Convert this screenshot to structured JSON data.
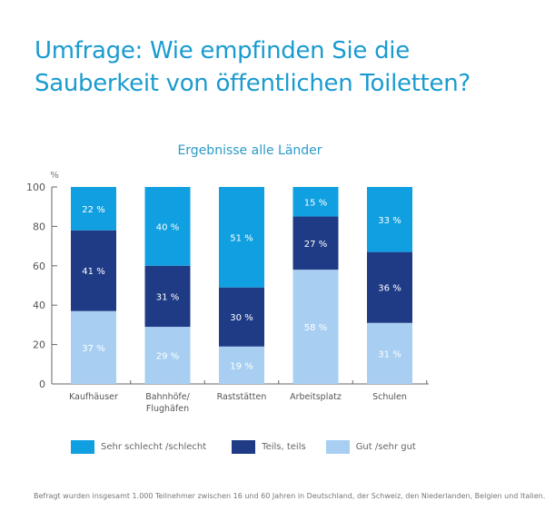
{
  "title_lines": [
    "Umfrage: Wie empfinden Sie die",
    "Sauberkeit von öffentlichen Toiletten?"
  ],
  "footnote": "Befragt wurden insgesamt 1.000 Teilnehmer zwischen 16 und 60 Jahren in Deutschland, der Schweiz, den Niederlanden, Belgien und Italien.",
  "colors": {
    "title": "#1a9bd0",
    "schlecht": "#109fe0",
    "teils": "#1f3b86",
    "gut": "#a8cff2"
  },
  "chart_data": {
    "type": "bar",
    "stacked": true,
    "title": "Ergebnisse alle Länder",
    "xlabel": "",
    "ylabel": "%",
    "ylim": [
      0,
      100
    ],
    "yticks": [
      0,
      20,
      40,
      60,
      80,
      100
    ],
    "categories": [
      "Kaufhäuser",
      "Bahnhöfe/\nFlughäfen",
      "Raststätten",
      "Arbeitsplatz",
      "Schulen"
    ],
    "series": [
      {
        "name": "Gut /sehr gut",
        "color": "#a8cff2",
        "values": [
          37,
          29,
          19,
          58,
          31
        ]
      },
      {
        "name": "Teils, teils",
        "color": "#1f3b86",
        "values": [
          41,
          31,
          30,
          27,
          36
        ]
      },
      {
        "name": "Sehr schlecht /schlecht",
        "color": "#109fe0",
        "values": [
          22,
          40,
          51,
          15,
          33
        ]
      }
    ],
    "legend": {
      "position": "bottom",
      "order": [
        "Sehr schlecht /schlecht",
        "Teils, teils",
        "Gut /sehr gut"
      ]
    },
    "value_label_suffix": " %",
    "grid": false
  }
}
